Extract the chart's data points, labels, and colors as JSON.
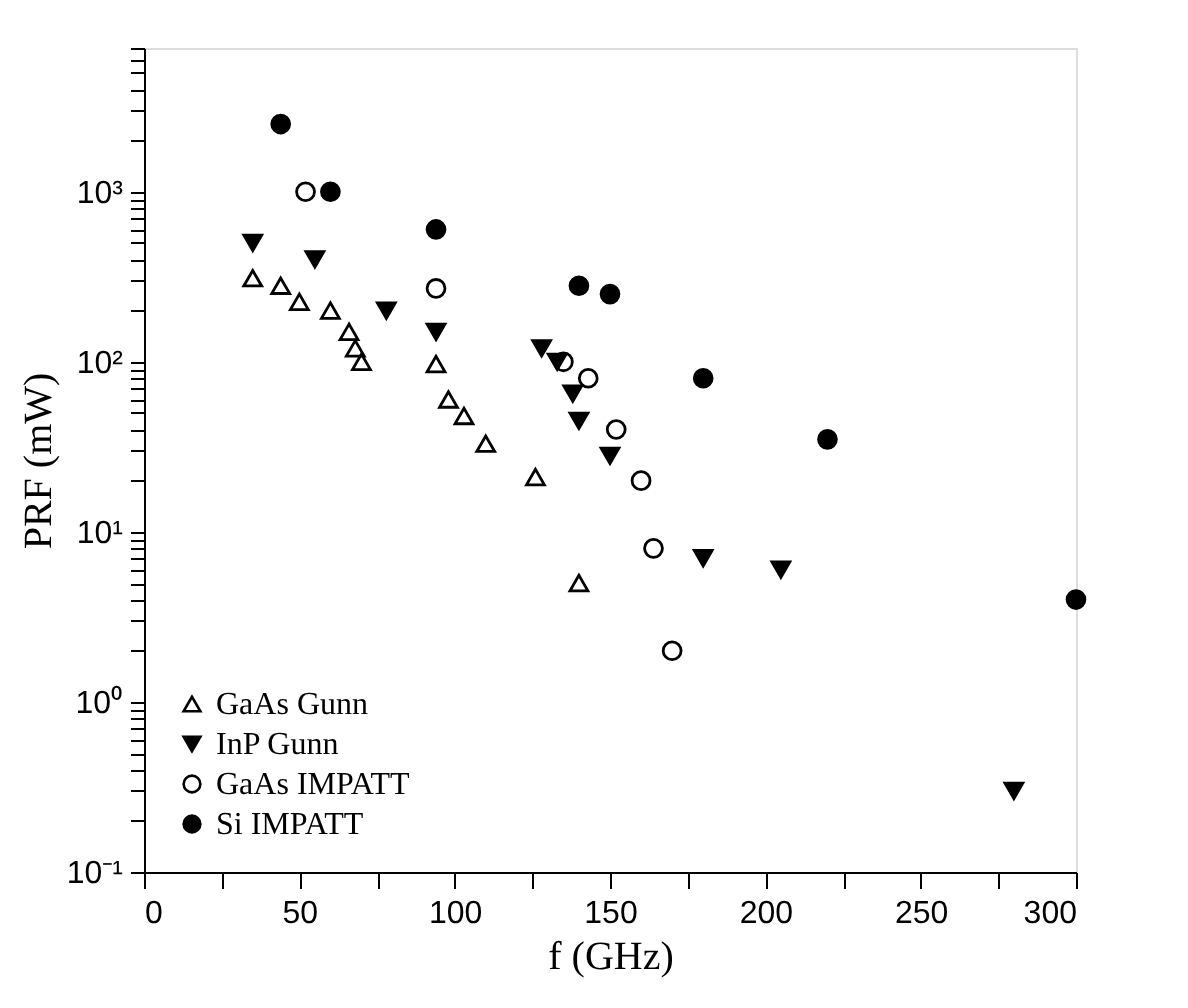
{
  "chart_data": {
    "type": "scatter",
    "xlabel": "f (GHz)",
    "ylabel": "PRF (mW)",
    "log": "y",
    "grid": false,
    "legend": "bottom left",
    "xlim": [
      0,
      300
    ],
    "xticks": [
      0,
      {
        "value": 25,
        "label": null
      },
      50,
      {
        "value": 75,
        "label": null
      },
      100,
      {
        "value": 125,
        "label": null
      },
      150,
      {
        "value": 175,
        "label": null
      },
      200,
      {
        "value": 225,
        "label": null
      },
      250,
      {
        "value": 275,
        "label": null
      },
      300
    ],
    "ylim": [
      0.1,
      7000
    ],
    "yticks": [
      {
        "value": 0.1,
        "label": "10⁻¹"
      },
      {
        "value": 1,
        "label": "10⁰"
      },
      {
        "value": 10,
        "label": "10¹"
      },
      {
        "value": 100,
        "label": "10²"
      },
      {
        "value": 1000,
        "label": "10³"
      }
    ],
    "series": [
      {
        "name": "GaAs Gunn",
        "color": "#000000",
        "marker": "triangle",
        "x": [
          35,
          44,
          50,
          60,
          66,
          68,
          70,
          94,
          98,
          103,
          110,
          126,
          140
        ],
        "values": [
          310,
          280,
          225,
          200,
          150,
          120,
          100,
          97,
          60,
          48,
          33,
          21,
          5
        ]
      },
      {
        "name": "InP Gunn",
        "color": "#000000",
        "marker": "triangle-down-filled",
        "x": [
          35,
          55,
          78,
          94,
          128,
          133,
          138,
          140,
          150,
          180,
          205,
          280
        ],
        "values": [
          500,
          400,
          200,
          150,
          120,
          100,
          65,
          45,
          28,
          7,
          6,
          0.3
        ]
      },
      {
        "name": "GaAs IMPATT",
        "color": "#000000",
        "marker": "circle",
        "x": [
          52,
          94,
          135,
          143,
          152,
          160,
          164,
          170
        ],
        "values": [
          1000,
          270,
          100,
          80,
          40,
          20,
          8,
          2
        ]
      },
      {
        "name": "Si IMPATT",
        "color": "#000000",
        "marker": "circle-filled",
        "x": [
          44,
          60,
          94,
          140,
          150,
          180,
          220,
          300
        ],
        "values": [
          2500,
          1000,
          600,
          280,
          250,
          80,
          35,
          4
        ]
      }
    ]
  }
}
